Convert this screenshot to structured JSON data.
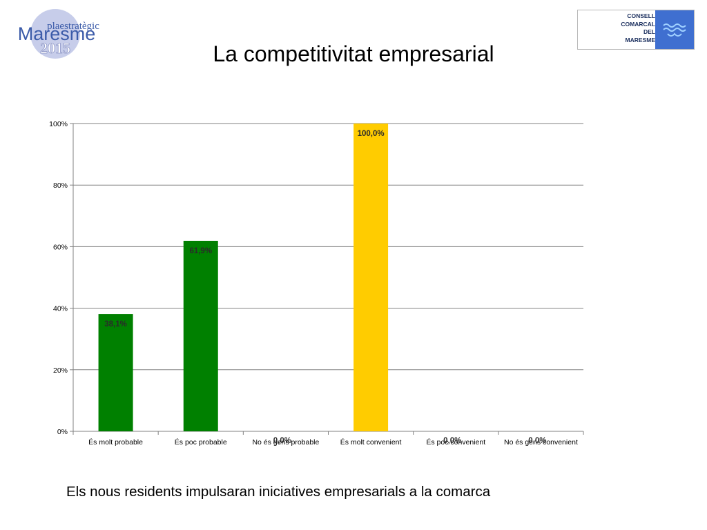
{
  "slide": {
    "title": "La competitivitat empresarial",
    "caption": "Els nous residents impulsaran iniciatives empresarials a la comarca"
  },
  "logos": {
    "left": {
      "top_text": "plaestratègic",
      "main_text": "Maresme",
      "year_text": "2015"
    },
    "right": {
      "lines": [
        "CONSELL",
        "COMARCAL",
        "DEL",
        "MARESME"
      ]
    }
  },
  "colors": {
    "green": "#008000",
    "yellow": "#ffcc00",
    "logo_circle": "#c7cdea",
    "logo_text": "#3b5ba9",
    "council_blue": "#3f6fd0"
  },
  "chart_data": {
    "type": "bar",
    "categories": [
      "És molt probable",
      "És poc probable",
      "No és gens probable",
      "És molt convenient",
      "És poc convenient",
      "No és gens convenient"
    ],
    "values": [
      38.1,
      61.9,
      0.0,
      100.0,
      0.0,
      0.0
    ],
    "data_labels": [
      "38,1%",
      "61,9%",
      "0,0%",
      "100,0%",
      "0,0%",
      "0,0%"
    ],
    "bar_colors": [
      "#008000",
      "#008000",
      "#008000",
      "#ffcc00",
      "#ffcc00",
      "#ffcc00"
    ],
    "ylim": [
      0,
      100
    ],
    "yticks": [
      0,
      20,
      40,
      60,
      80,
      100
    ],
    "ytick_labels": [
      "0%",
      "20%",
      "40%",
      "60%",
      "80%",
      "100%"
    ],
    "grid": true,
    "legend": "none",
    "title": "",
    "xlabel": "",
    "ylabel": ""
  }
}
